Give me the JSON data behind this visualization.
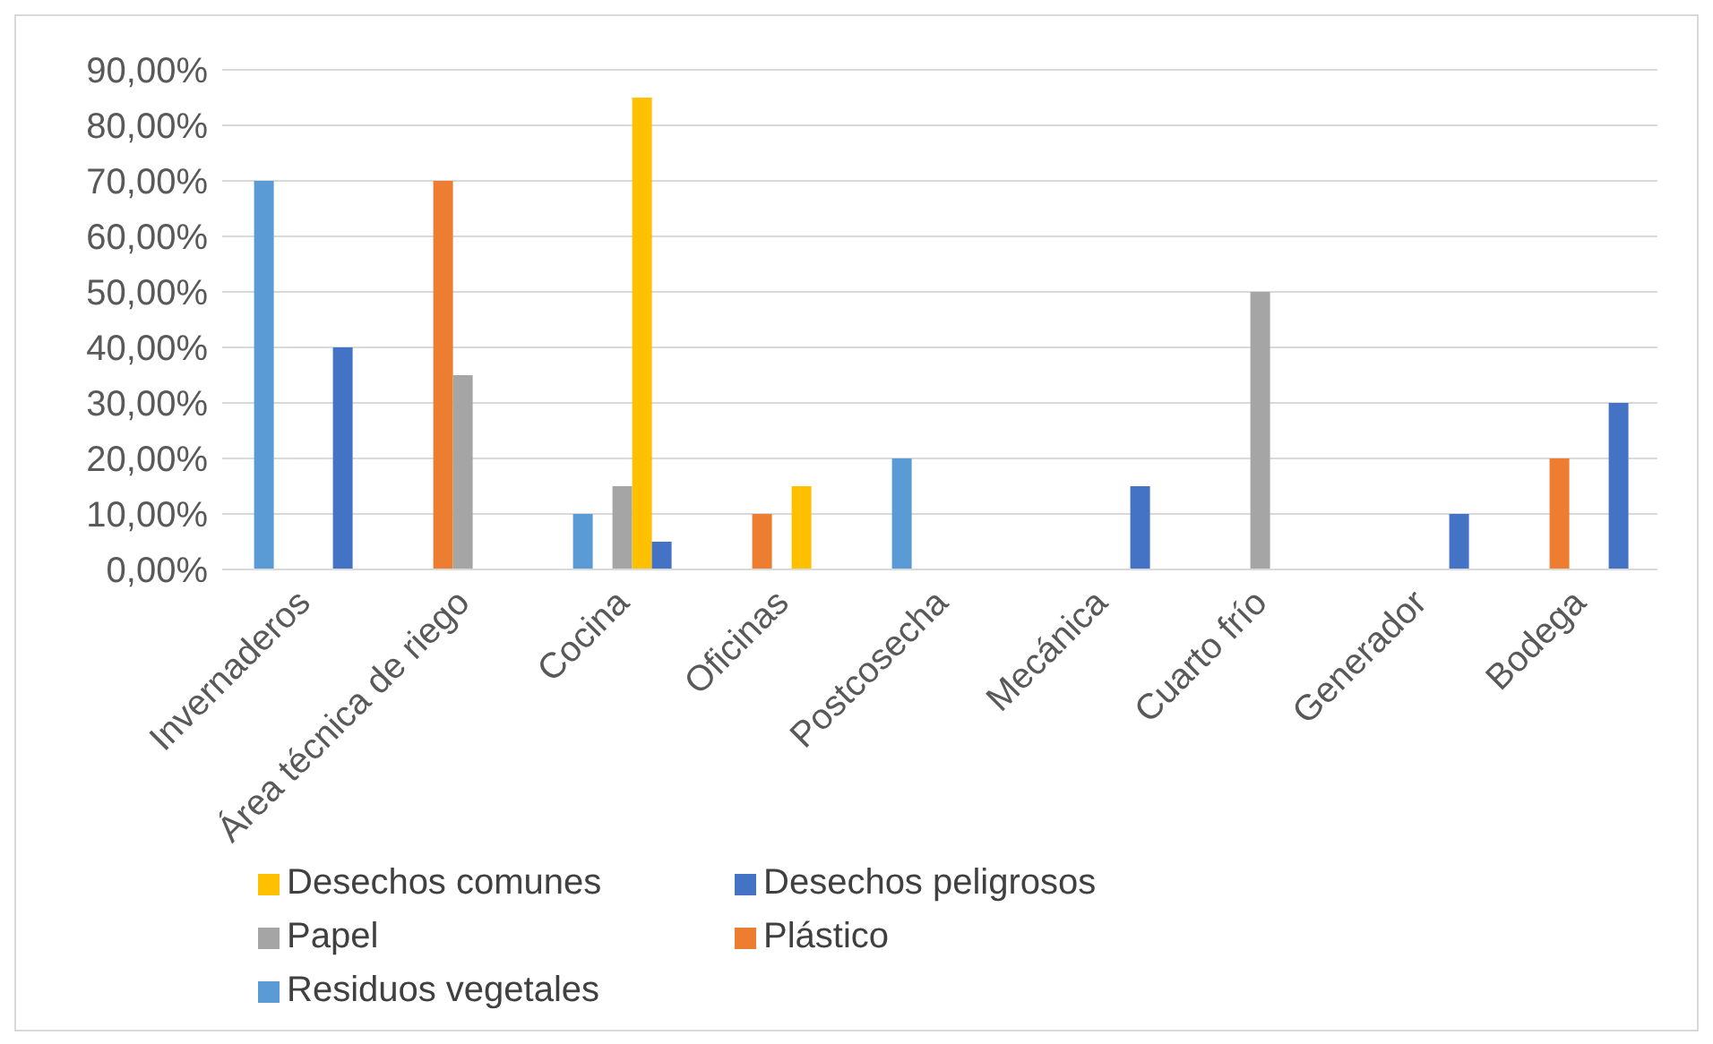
{
  "chart_data": {
    "type": "bar",
    "categories": [
      "Invernaderos",
      "Área técnica de riego",
      "Cocina",
      "Oficinas",
      "Postcosecha",
      "Mecánica",
      "Cuarto frío",
      "Generador",
      "Bodega"
    ],
    "series": [
      {
        "name": "Residuos vegetales",
        "color": "#5b9bd5",
        "values": [
          70,
          null,
          10,
          null,
          20,
          null,
          null,
          null,
          null
        ]
      },
      {
        "name": "Plástico",
        "color": "#ed7d31",
        "values": [
          null,
          70,
          null,
          10,
          null,
          null,
          null,
          null,
          20
        ]
      },
      {
        "name": "Papel",
        "color": "#a5a5a5",
        "values": [
          null,
          35,
          15,
          null,
          null,
          null,
          50,
          null,
          null
        ]
      },
      {
        "name": "Desechos comunes",
        "color": "#ffc000",
        "values": [
          null,
          null,
          85,
          15,
          null,
          null,
          null,
          null,
          null
        ]
      },
      {
        "name": "Desechos peligrosos",
        "color": "#4472c4",
        "values": [
          40,
          null,
          5,
          null,
          null,
          15,
          null,
          10,
          30
        ]
      }
    ],
    "ylim": [
      0,
      90
    ],
    "yticks": [
      {
        "value": 0,
        "label": "0,00%"
      },
      {
        "value": 10,
        "label": "10,00%"
      },
      {
        "value": 20,
        "label": "20,00%"
      },
      {
        "value": 30,
        "label": "30,00%"
      },
      {
        "value": 40,
        "label": "40,00%"
      },
      {
        "value": 50,
        "label": "50,00%"
      },
      {
        "value": 60,
        "label": "60,00%"
      },
      {
        "value": 70,
        "label": "70,00%"
      },
      {
        "value": 80,
        "label": "80,00%"
      },
      {
        "value": 90,
        "label": "90,00%"
      }
    ],
    "grid": "y",
    "legend": "bottom"
  }
}
